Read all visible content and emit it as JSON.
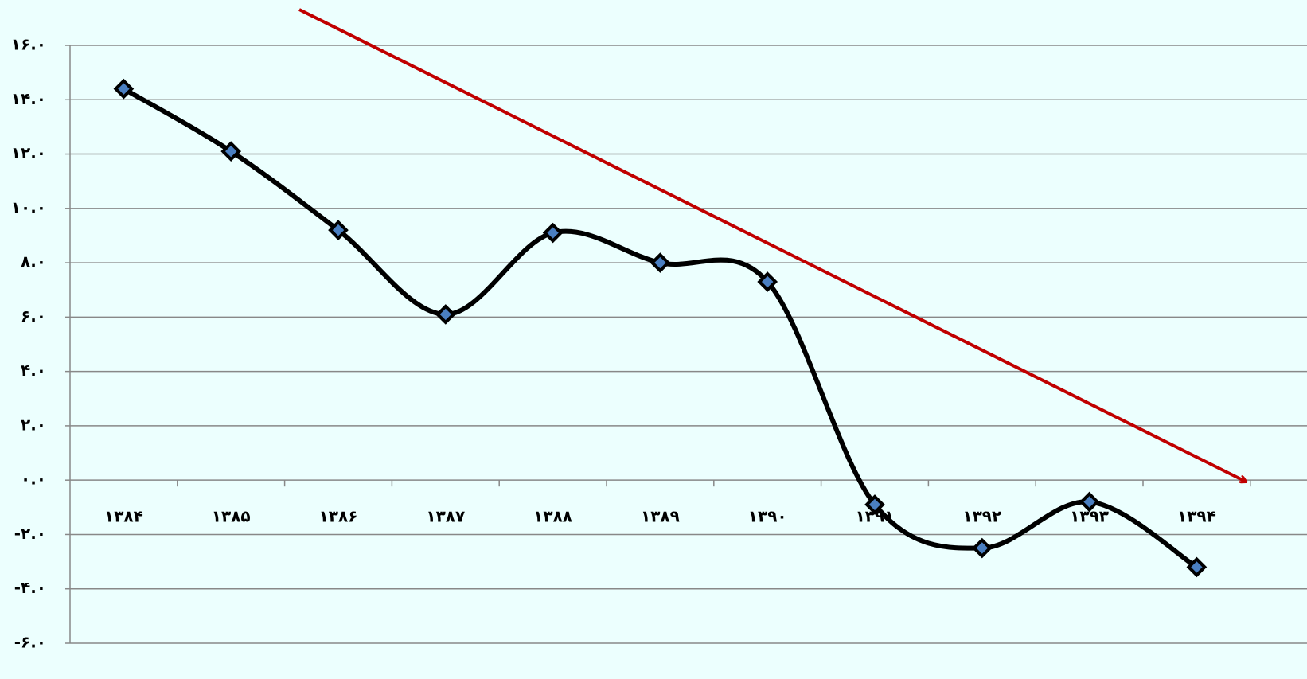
{
  "chart_data": {
    "type": "line",
    "categories": [
      "۱۳۸۴",
      "۱۳۸۵",
      "۱۳۸۶",
      "۱۳۸۷",
      "۱۳۸۸",
      "۱۳۸۹",
      "۱۳۹۰",
      "۱۳۹۱",
      "۱۳۹۲",
      "۱۳۹۳",
      "۱۳۹۴"
    ],
    "values": [
      14.4,
      12.1,
      9.2,
      6.1,
      9.1,
      8.0,
      7.3,
      -0.9,
      -2.5,
      -0.8,
      -3.2
    ],
    "color": "#000000",
    "marker_color": "#4a7fc1",
    "ylim": [
      -6,
      16
    ],
    "yticks": [
      {
        "value": -6,
        "label": "-۶.۰"
      },
      {
        "value": -4,
        "label": "-۴.۰"
      },
      {
        "value": -2,
        "label": "-۲.۰"
      },
      {
        "value": 0,
        "label": "۰.۰"
      },
      {
        "value": 2,
        "label": "۲.۰"
      },
      {
        "value": 4,
        "label": "۴.۰"
      },
      {
        "value": 6,
        "label": "۶.۰"
      },
      {
        "value": 8,
        "label": "۸.۰"
      },
      {
        "value": 10,
        "label": "۱۰.۰"
      },
      {
        "value": 12,
        "label": "۱۲.۰"
      },
      {
        "value": 14,
        "label": "۱۴.۰"
      },
      {
        "value": 16,
        "label": "۱۶.۰"
      }
    ],
    "grid": true
  }
}
